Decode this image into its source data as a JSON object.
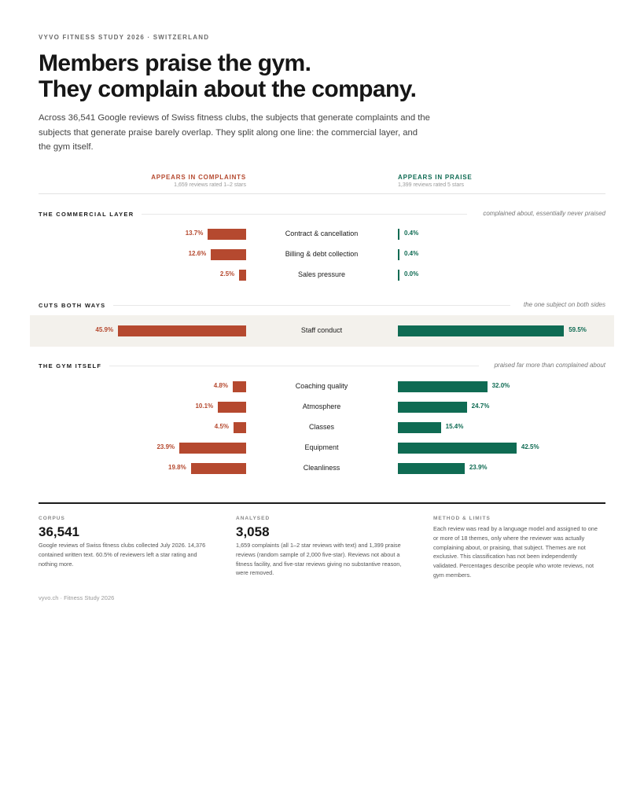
{
  "header": {
    "kicker": "VYVO FITNESS STUDY 2026 · SWITZERLAND",
    "headline_line1": "Members praise the gym.",
    "headline_line2": "They complain about the company.",
    "dek": "Across 36,541 Google reviews of Swiss fitness clubs, the subjects that generate complaints and the subjects that generate praise barely overlap. They split along one line: the commercial layer, and the gym itself."
  },
  "columns": {
    "complaints_title": "APPEARS IN COMPLAINTS",
    "complaints_sub": "1,659 reviews rated 1–2 stars",
    "praise_title": "APPEARS IN PRAISE",
    "praise_sub": "1,399 reviews rated 5 stars"
  },
  "sections": [
    {
      "title": "THE COMMERCIAL LAYER",
      "note": "complained about, essentially never praised"
    },
    {
      "title": "CUTS BOTH WAYS",
      "note": "the one subject on both sides"
    },
    {
      "title": "THE GYM ITSELF",
      "note": "praised far more than complained about"
    }
  ],
  "chart_data": {
    "type": "bar",
    "categories": [
      "Contract & cancellation",
      "Billing & debt collection",
      "Sales pressure",
      "Staff conduct",
      "Coaching quality",
      "Atmosphere",
      "Classes",
      "Equipment",
      "Cleanliness"
    ],
    "groups": [
      "THE COMMERCIAL LAYER",
      "THE COMMERCIAL LAYER",
      "THE COMMERCIAL LAYER",
      "CUTS BOTH WAYS",
      "THE GYM ITSELF",
      "THE GYM ITSELF",
      "THE GYM ITSELF",
      "THE GYM ITSELF",
      "THE GYM ITSELF"
    ],
    "series": [
      {
        "name": "APPEARS IN COMPLAINTS",
        "color": "#b5492f",
        "values": [
          13.7,
          12.6,
          2.5,
          45.9,
          4.8,
          10.1,
          4.5,
          23.9,
          19.8
        ],
        "labels": [
          "13.7%",
          "12.6%",
          "2.5%",
          "45.9%",
          "4.8%",
          "10.1%",
          "4.5%",
          "23.9%",
          "19.8%"
        ]
      },
      {
        "name": "APPEARS IN PRAISE",
        "color": "#0f6b53",
        "values": [
          0.4,
          0.4,
          0.0,
          59.5,
          32.0,
          24.7,
          15.4,
          42.5,
          23.9
        ],
        "labels": [
          "0.4%",
          "0.4%",
          "0.0%",
          "59.5%",
          "32.0%",
          "24.7%",
          "15.4%",
          "42.5%",
          "23.9%"
        ]
      }
    ],
    "unit": "%"
  },
  "footer": {
    "corpus_label": "CORPUS",
    "corpus_value": "36,541",
    "corpus_text": "Google reviews of Swiss fitness clubs collected July 2026. 14,376 contained written text. 60.5% of reviewers left a star rating and nothing more.",
    "analysed_label": "ANALYSED",
    "analysed_value": "3,058",
    "analysed_text": "1,659 complaints (all 1–2 star reviews with text) and 1,399 praise reviews (random sample of 2,000 five-star). Reviews not about a fitness facility, and five-star reviews giving no substantive reason, were removed.",
    "method_label": "METHOD & LIMITS",
    "method_text": "Each review was read by a language model and assigned to one or more of 18 themes, only where the reviewer was actually complaining about, or praising, that subject. Themes are not exclusive. This classification has not been independently validated. Percentages describe people who wrote reviews, not gym members.",
    "colophon": "vyvo.ch · Fitness Study 2026"
  }
}
